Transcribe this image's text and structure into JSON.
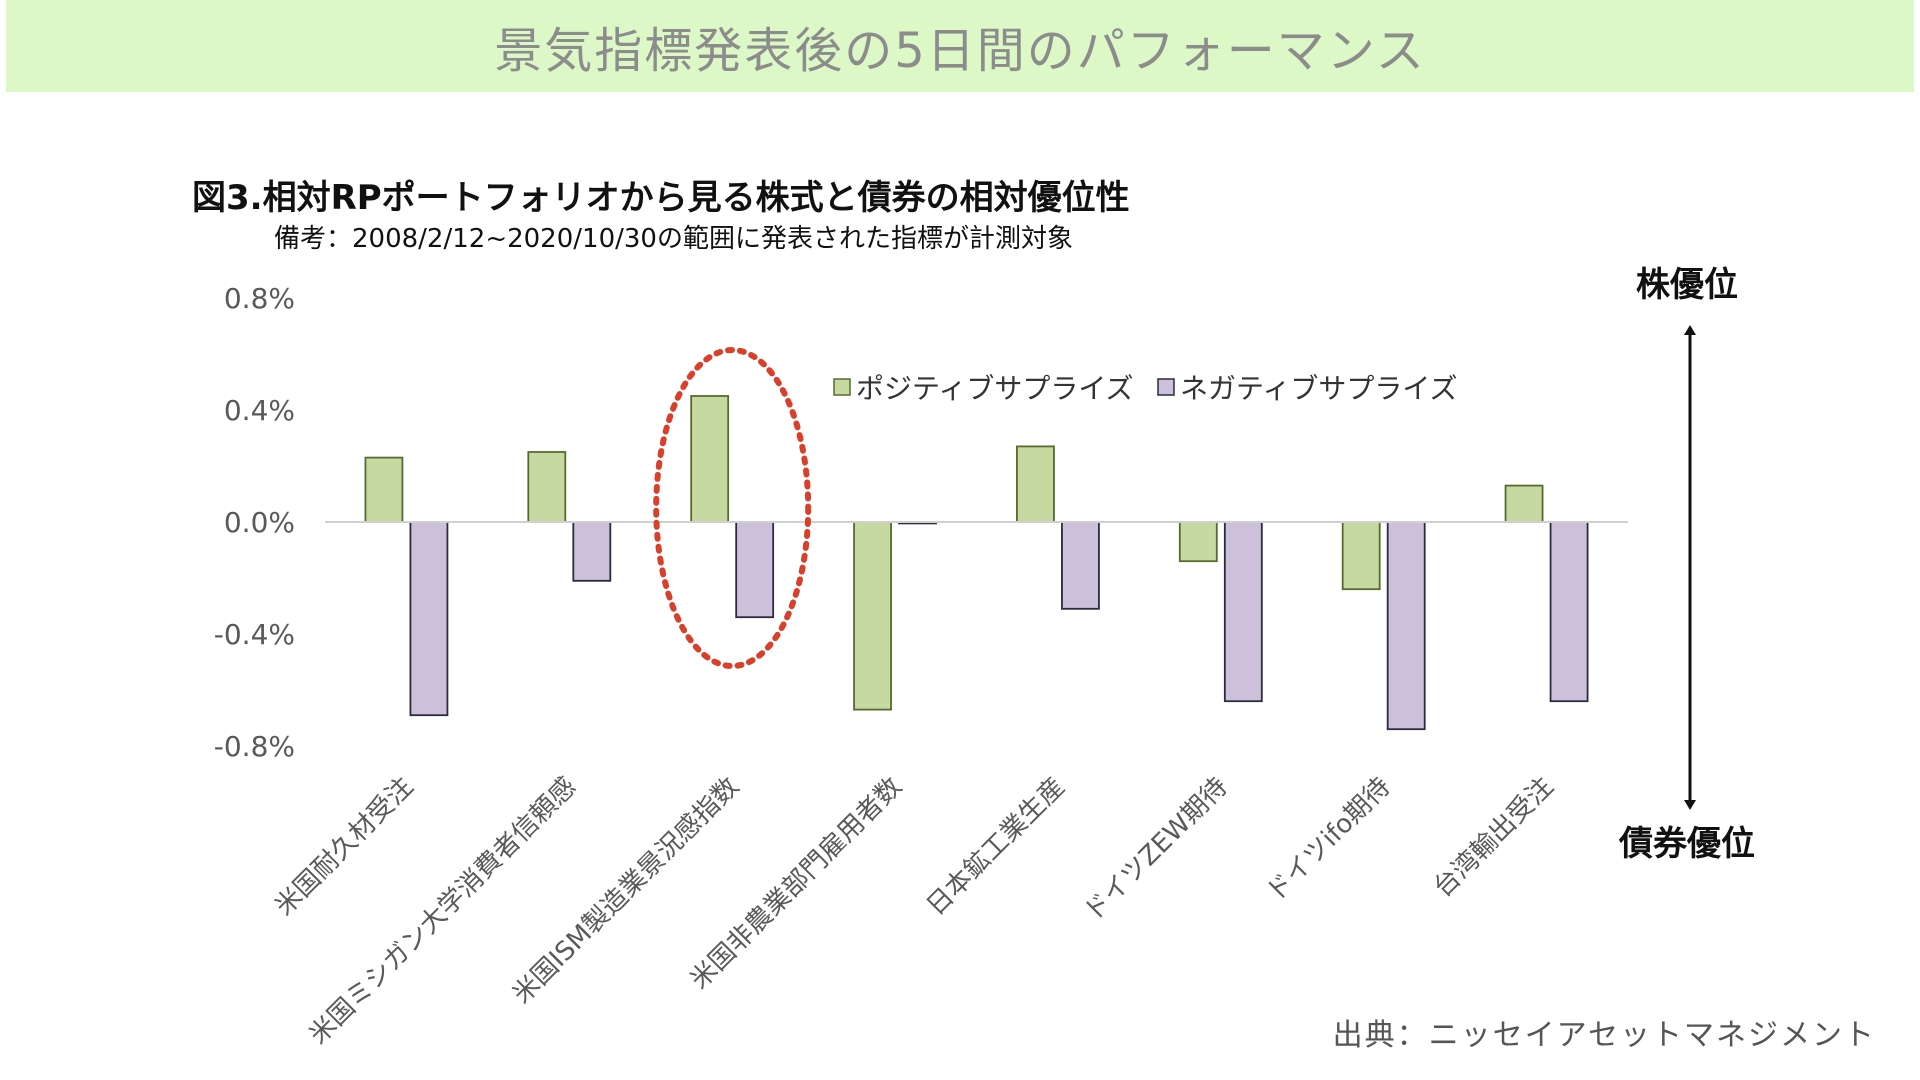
{
  "header": {
    "banner_title": "景気指標発表後の5日間のパフォーマンス"
  },
  "chart_data": {
    "type": "bar",
    "title": "図3.相対RPポートフォリオから見る株式と債券の相対優位性",
    "subtitle": "備考：2008/2/12~2020/10/30の範囲に発表された指標が計測対象",
    "categories": [
      "米国耐久材受注",
      "米国ミシガン大学消費者信頼感",
      "米国ISM製造業景況感指数",
      "米国非農業部門雇用者数",
      "日本鉱工業生産",
      "ドイツZEW期待",
      "ドイツifo期待",
      "台湾輸出受注"
    ],
    "series": [
      {
        "name": "ポジティブサプライズ",
        "values": [
          0.23,
          0.25,
          0.45,
          -0.67,
          0.27,
          -0.14,
          -0.24,
          0.13
        ],
        "color": "#c6d9a0",
        "stroke": "#556b2f"
      },
      {
        "name": "ネガティブサプライズ",
        "values": [
          -0.69,
          -0.21,
          -0.34,
          -0.005,
          -0.31,
          -0.64,
          -0.74,
          -0.64
        ],
        "color": "#ccc0da",
        "stroke": "#2b2b3d"
      }
    ],
    "ylim": [
      -0.8,
      0.8
    ],
    "yticks": [
      0.8,
      0.4,
      0.0,
      -0.4,
      -0.8
    ],
    "ytick_labels": [
      "0.8%",
      "0.4%",
      "0.0%",
      "-0.4%",
      "-0.8%"
    ],
    "legend_placement": "top-center",
    "grid": false,
    "highlighted_category": "米国ISM製造業景況感指数",
    "highlight_color": "#d9402b",
    "arrow_top_label": "株優位",
    "arrow_bottom_label": "債券優位"
  },
  "footer": {
    "source": "出典：ニッセイアセットマネジメント"
  }
}
